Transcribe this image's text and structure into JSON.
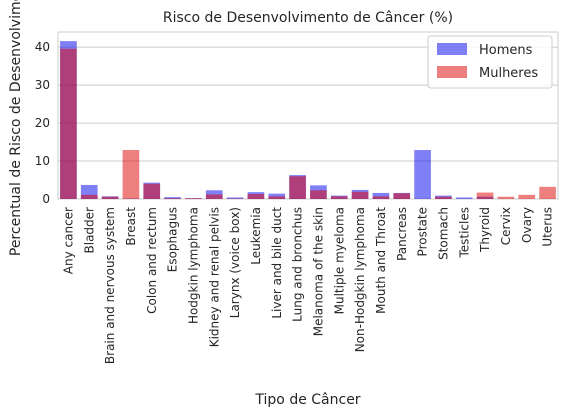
{
  "chart_data": {
    "type": "bar",
    "title": "Risco de Desenvolvimento de Câncer (%)",
    "xlabel": "Tipo de Câncer",
    "ylabel": "Percentual de Risco de Desenvolvimento",
    "ylim": [
      0,
      44
    ],
    "yticks": [
      0,
      10,
      20,
      30,
      40
    ],
    "grid": "horizontal",
    "legend_position": "top-right",
    "categories": [
      "Any cancer",
      "Bladder",
      "Brain and nervous system",
      "Breast",
      "Colon and rectum",
      "Esophagus",
      "Hodgkin lymphoma",
      "Kidney and renal pelvis",
      "Larynx (voice box)",
      "Leukemia",
      "Liver and bile duct",
      "Lung and bronchus",
      "Melanoma of the skin",
      "Multiple myeloma",
      "Non-Hodgkin lymphoma",
      "Mouth and Throat",
      "Pancreas",
      "Prostate",
      "Stomach",
      "Testicles",
      "Thyroid",
      "Cervix",
      "Ovary",
      "Uterus"
    ],
    "series": [
      {
        "name": "Homens",
        "color": "#0000ee",
        "values": [
          41.6,
          3.7,
          0.7,
          0.1,
          4.3,
          0.5,
          0.2,
          2.3,
          0.4,
          1.8,
          1.4,
          6.3,
          3.6,
          0.9,
          2.4,
          1.6,
          1.6,
          12.9,
          0.9,
          0.4,
          0.6,
          0,
          0,
          0
        ]
      },
      {
        "name": "Mulheres",
        "color": "#dd0000",
        "values": [
          39.6,
          1.1,
          0.6,
          12.9,
          4.0,
          0.2,
          0.2,
          1.2,
          0.1,
          1.3,
          0.7,
          6.0,
          2.3,
          0.7,
          1.9,
          0.7,
          1.5,
          0,
          0.6,
          0,
          1.7,
          0.6,
          1.1,
          3.2
        ]
      }
    ]
  }
}
